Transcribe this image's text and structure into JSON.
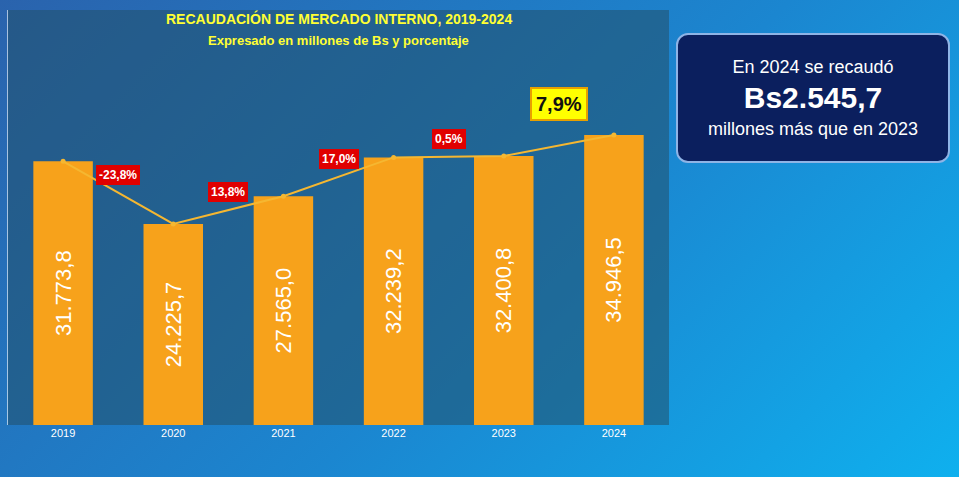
{
  "chart_data": {
    "type": "bar",
    "title": "RECAUDACIÓN DE MERCADO INTERNO, 2019-2024",
    "subtitle": "Expresado en millones de Bs y porcentaje",
    "categories": [
      "2019",
      "2020",
      "2021",
      "2022",
      "2023",
      "2024"
    ],
    "values": [
      31773.8,
      24225.7,
      27565.0,
      32239.2,
      32400.8,
      34946.5
    ],
    "value_labels": [
      "31.773,8",
      "24.225,7",
      "27.565,0",
      "32.239,2",
      "32.400,8",
      "34.946,5"
    ],
    "color": "#f7a21b",
    "data_labels": true,
    "tick_labels": "x",
    "grid": false,
    "ylim": [
      0,
      50000
    ],
    "growth_rates": [
      null,
      -23.8,
      13.8,
      17.0,
      0.5,
      7.9
    ],
    "growth_labels": [
      null,
      "-23,8%",
      "13,8%",
      "17,0%",
      "0,5%",
      "7,9%"
    ],
    "callout": {
      "text_before": "En 2024 se recaudó",
      "value": 2545.7,
      "value_label": "Bs2.545,7",
      "text_after": "millones más que en 2023"
    }
  }
}
